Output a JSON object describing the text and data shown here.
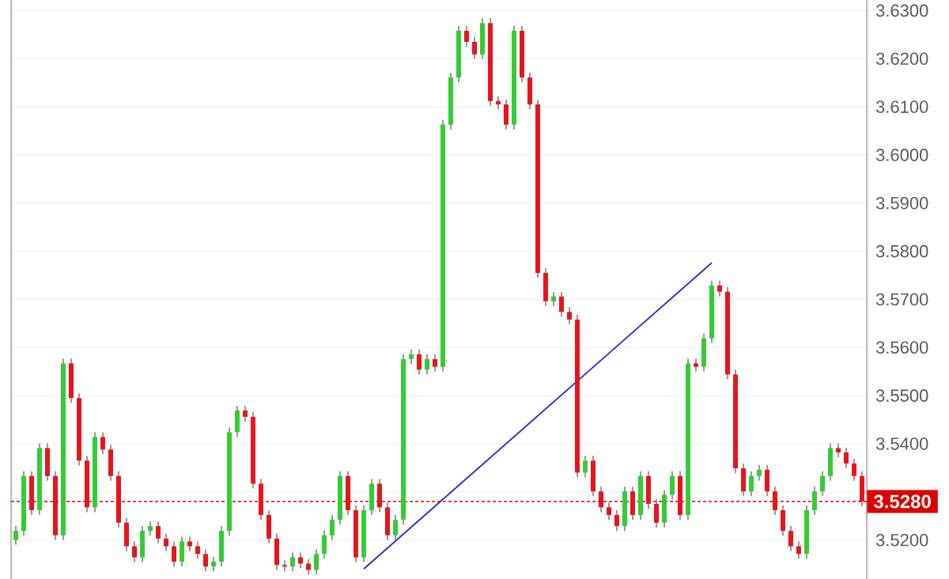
{
  "chart_data": {
    "type": "candlestick",
    "tick_labels": "y",
    "grid": "y",
    "categories": [
      null,
      null,
      null,
      null,
      null,
      null,
      null,
      null,
      null,
      null,
      null,
      null,
      null,
      null,
      null,
      null,
      null,
      null,
      null,
      null,
      null,
      null,
      null,
      null,
      null,
      null,
      null,
      null,
      null,
      null,
      null,
      null,
      null,
      null,
      null,
      null,
      null,
      null,
      null,
      null,
      null,
      null,
      null,
      null,
      null,
      null,
      null,
      null,
      null,
      null,
      null,
      null,
      null,
      null,
      null,
      null,
      null,
      null,
      null,
      null,
      null,
      null,
      null,
      null,
      null,
      null,
      null,
      null,
      null,
      null,
      null,
      null,
      null,
      null,
      null,
      null,
      null,
      null,
      null,
      null,
      null,
      null,
      null,
      null,
      null,
      null,
      null,
      null,
      null,
      null,
      null,
      null,
      null,
      null,
      null,
      null,
      null,
      null,
      null,
      null,
      null,
      null,
      null,
      null,
      null,
      null,
      null,
      null
    ],
    "ohlc": [
      [
        3.52,
        3.5229,
        3.519,
        3.5219
      ],
      [
        3.5219,
        3.5343,
        3.5209,
        3.5333
      ],
      [
        3.5333,
        3.5343,
        3.5252,
        3.5262
      ],
      [
        3.5262,
        3.5401,
        3.5252,
        3.5391
      ],
      [
        3.5391,
        3.5401,
        3.5323,
        3.5333
      ],
      [
        3.5333,
        3.5343,
        3.52,
        3.521
      ],
      [
        3.521,
        3.5577,
        3.52,
        3.5567
      ],
      [
        3.5567,
        3.5577,
        3.5485,
        3.5495
      ],
      [
        3.5495,
        3.5505,
        3.5355,
        3.5365
      ],
      [
        3.5365,
        3.5375,
        3.5258,
        3.5268
      ],
      [
        3.5268,
        3.5424,
        3.5258,
        3.5414
      ],
      [
        3.5414,
        3.5424,
        3.5378,
        3.5388
      ],
      [
        3.5388,
        3.5398,
        3.5323,
        3.5333
      ],
      [
        3.5333,
        3.5343,
        3.5226,
        3.5236
      ],
      [
        3.5236,
        3.5246,
        3.5177,
        3.5187
      ],
      [
        3.5187,
        3.5197,
        3.5154,
        3.5164
      ],
      [
        3.5164,
        3.5229,
        3.5154,
        3.5219
      ],
      [
        3.5219,
        3.5239,
        3.5209,
        3.5229
      ],
      [
        3.5229,
        3.5239,
        3.5193,
        3.5203
      ],
      [
        3.5203,
        3.5213,
        3.5177,
        3.5187
      ],
      [
        3.5187,
        3.5197,
        3.5145,
        3.5155
      ],
      [
        3.5155,
        3.5207,
        3.5145,
        3.5197
      ],
      [
        3.5197,
        3.5207,
        3.5177,
        3.5187
      ],
      [
        3.5187,
        3.5197,
        3.5161,
        3.5171
      ],
      [
        3.5171,
        3.5181,
        3.5135,
        3.5145
      ],
      [
        3.5145,
        3.5165,
        3.5135,
        3.5155
      ],
      [
        3.5155,
        3.5229,
        3.5145,
        3.5219
      ],
      [
        3.5219,
        3.5434,
        3.5209,
        3.5424
      ],
      [
        3.5424,
        3.5479,
        3.5414,
        3.5469
      ],
      [
        3.5469,
        3.5479,
        3.5446,
        3.5456
      ],
      [
        3.5456,
        3.5466,
        3.5307,
        3.5317
      ],
      [
        3.5317,
        3.5327,
        3.5242,
        3.5252
      ],
      [
        3.5252,
        3.5262,
        3.5193,
        3.5203
      ],
      [
        3.5203,
        3.5213,
        3.5138,
        3.5148
      ],
      [
        3.5148,
        3.5158,
        3.5135,
        3.5145
      ],
      [
        3.5145,
        3.5174,
        3.5135,
        3.5164
      ],
      [
        3.5164,
        3.5174,
        3.5141,
        3.5151
      ],
      [
        3.5151,
        3.5161,
        3.5128,
        3.5138
      ],
      [
        3.5138,
        3.5181,
        3.5128,
        3.5171
      ],
      [
        3.5171,
        3.522,
        3.5161,
        3.521
      ],
      [
        3.521,
        3.5252,
        3.52,
        3.5242
      ],
      [
        3.5242,
        3.5343,
        3.5232,
        3.5333
      ],
      [
        3.5333,
        3.5343,
        3.5252,
        3.5262
      ],
      [
        3.5262,
        3.5272,
        3.5154,
        3.5164
      ],
      [
        3.5164,
        3.5272,
        3.5154,
        3.5262
      ],
      [
        3.5262,
        3.5327,
        3.5252,
        3.5317
      ],
      [
        3.5317,
        3.5327,
        3.5258,
        3.5268
      ],
      [
        3.5268,
        3.5278,
        3.52,
        3.521
      ],
      [
        3.521,
        3.5252,
        3.52,
        3.5242
      ],
      [
        3.5242,
        3.5586,
        3.5232,
        3.5576
      ],
      [
        3.5576,
        3.5596,
        3.5566,
        3.5586
      ],
      [
        3.5586,
        3.5596,
        3.5544,
        3.5554
      ],
      [
        3.5554,
        3.5586,
        3.5544,
        3.5576
      ],
      [
        3.5576,
        3.5586,
        3.555,
        3.556
      ],
      [
        3.556,
        3.6073,
        3.555,
        3.6063
      ],
      [
        3.6063,
        3.6171,
        3.6053,
        3.6161
      ],
      [
        3.6161,
        3.6268,
        3.6151,
        3.6258
      ],
      [
        3.6258,
        3.6268,
        3.6225,
        3.6235
      ],
      [
        3.6235,
        3.6245,
        3.6199,
        3.6209
      ],
      [
        3.6209,
        3.6284,
        3.6199,
        3.6274
      ],
      [
        3.6274,
        3.6284,
        3.6102,
        3.6112
      ],
      [
        3.6112,
        3.6122,
        3.6095,
        3.6105
      ],
      [
        3.6105,
        3.6115,
        3.6053,
        3.6063
      ],
      [
        3.6063,
        3.6268,
        3.6053,
        3.6258
      ],
      [
        3.6258,
        3.6268,
        3.6151,
        3.6161
      ],
      [
        3.6161,
        3.6171,
        3.6095,
        3.6105
      ],
      [
        3.6105,
        3.6115,
        3.5745,
        3.5755
      ],
      [
        3.5755,
        3.5765,
        3.5686,
        3.5696
      ],
      [
        3.5696,
        3.5716,
        3.5686,
        3.5706
      ],
      [
        3.5706,
        3.5716,
        3.5664,
        3.5674
      ],
      [
        3.5674,
        3.5684,
        3.5648,
        3.5658
      ],
      [
        3.5658,
        3.5668,
        3.533,
        3.534
      ],
      [
        3.534,
        3.5375,
        3.533,
        3.5365
      ],
      [
        3.5365,
        3.5375,
        3.5291,
        3.5301
      ],
      [
        3.5301,
        3.5311,
        3.5258,
        3.5268
      ],
      [
        3.5268,
        3.5278,
        3.5242,
        3.5252
      ],
      [
        3.5252,
        3.5262,
        3.5219,
        3.5229
      ],
      [
        3.5229,
        3.5311,
        3.5219,
        3.5301
      ],
      [
        3.5301,
        3.5311,
        3.5242,
        3.5252
      ],
      [
        3.5252,
        3.5343,
        3.5242,
        3.5333
      ],
      [
        3.5333,
        3.5343,
        3.5265,
        3.5275
      ],
      [
        3.5275,
        3.5285,
        3.5226,
        3.5236
      ],
      [
        3.5236,
        3.5304,
        3.5226,
        3.5294
      ],
      [
        3.5294,
        3.5343,
        3.5284,
        3.5333
      ],
      [
        3.5333,
        3.5343,
        3.5242,
        3.5252
      ],
      [
        3.5252,
        3.5577,
        3.5242,
        3.5567
      ],
      [
        3.5567,
        3.5577,
        3.555,
        3.556
      ],
      [
        3.556,
        3.5629,
        3.555,
        3.5619
      ],
      [
        3.5619,
        3.5739,
        3.5609,
        3.5729
      ],
      [
        3.5729,
        3.5739,
        3.5706,
        3.5716
      ],
      [
        3.5716,
        3.5726,
        3.5534,
        3.5544
      ],
      [
        3.5544,
        3.5554,
        3.5339,
        3.5349
      ],
      [
        3.5349,
        3.5359,
        3.5291,
        3.5301
      ],
      [
        3.5301,
        3.5343,
        3.5291,
        3.5333
      ],
      [
        3.5333,
        3.5356,
        3.5323,
        3.5346
      ],
      [
        3.5346,
        3.5356,
        3.5291,
        3.5301
      ],
      [
        3.5301,
        3.5311,
        3.5252,
        3.5262
      ],
      [
        3.5262,
        3.5272,
        3.5209,
        3.5219
      ],
      [
        3.5219,
        3.5229,
        3.5177,
        3.5187
      ],
      [
        3.5187,
        3.5197,
        3.5161,
        3.5171
      ],
      [
        3.5171,
        3.5272,
        3.5161,
        3.5262
      ],
      [
        3.5262,
        3.5311,
        3.5252,
        3.5301
      ],
      [
        3.5301,
        3.5343,
        3.5291,
        3.5333
      ],
      [
        3.5333,
        3.5401,
        3.5323,
        3.5391
      ],
      [
        3.5391,
        3.5401,
        3.5372,
        3.5382
      ],
      [
        3.5382,
        3.5392,
        3.5349,
        3.5359
      ],
      [
        3.5359,
        3.5369,
        3.5323,
        3.5333
      ],
      [
        3.5333,
        3.5343,
        3.527,
        3.528
      ]
    ],
    "colors": [
      "#33cc33",
      "#33cc33",
      "#e8141b",
      "#33cc33",
      "#e8141b",
      "#e8141b",
      "#33cc33",
      "#e8141b",
      "#e8141b",
      "#e8141b",
      "#33cc33",
      "#e8141b",
      "#e8141b",
      "#e8141b",
      "#e8141b",
      "#e8141b",
      "#33cc33",
      "#33cc33",
      "#e8141b",
      "#e8141b",
      "#e8141b",
      "#33cc33",
      "#e8141b",
      "#e8141b",
      "#e8141b",
      "#33cc33",
      "#33cc33",
      "#33cc33",
      "#33cc33",
      "#e8141b",
      "#e8141b",
      "#e8141b",
      "#e8141b",
      "#e8141b",
      "#e8141b",
      "#33cc33",
      "#e8141b",
      "#e8141b",
      "#33cc33",
      "#33cc33",
      "#33cc33",
      "#33cc33",
      "#e8141b",
      "#e8141b",
      "#33cc33",
      "#33cc33",
      "#e8141b",
      "#e8141b",
      "#33cc33",
      "#33cc33",
      "#33cc33",
      "#e8141b",
      "#33cc33",
      "#e8141b",
      "#33cc33",
      "#33cc33",
      "#33cc33",
      "#e8141b",
      "#e8141b",
      "#33cc33",
      "#e8141b",
      "#e8141b",
      "#e8141b",
      "#33cc33",
      "#e8141b",
      "#e8141b",
      "#e8141b",
      "#e8141b",
      "#33cc33",
      "#e8141b",
      "#e8141b",
      "#e8141b",
      "#33cc33",
      "#e8141b",
      "#e8141b",
      "#e8141b",
      "#e8141b",
      "#33cc33",
      "#e8141b",
      "#33cc33",
      "#e8141b",
      "#e8141b",
      "#33cc33",
      "#33cc33",
      "#e8141b",
      "#33cc33",
      "#e8141b",
      "#33cc33",
      "#33cc33",
      "#e8141b",
      "#e8141b",
      "#e8141b",
      "#e8141b",
      "#33cc33",
      "#33cc33",
      "#e8141b",
      "#e8141b",
      "#e8141b",
      "#e8141b",
      "#e8141b",
      "#33cc33",
      "#33cc33",
      "#33cc33",
      "#33cc33",
      "#e8141b",
      "#e8141b",
      "#e8141b",
      "#e8141b"
    ],
    "series": [
      {
        "type": "line",
        "color": "#2525d6",
        "values": [
          null,
          null,
          null,
          null,
          null,
          null,
          null,
          null,
          null,
          null,
          null,
          null,
          null,
          null,
          null,
          null,
          null,
          null,
          null,
          null,
          null,
          null,
          null,
          null,
          null,
          null,
          null,
          null,
          null,
          null,
          null,
          null,
          null,
          null,
          null,
          null,
          null,
          null,
          null,
          null,
          null,
          null,
          null,
          null,
          3.514,
          null,
          null,
          null,
          null,
          null,
          null,
          null,
          null,
          null,
          null,
          null,
          null,
          null,
          null,
          null,
          null,
          null,
          null,
          null,
          null,
          null,
          null,
          null,
          null,
          null,
          null,
          null,
          null,
          null,
          null,
          null,
          null,
          null,
          null,
          null,
          null,
          null,
          null,
          null,
          null,
          null,
          null,
          null,
          3.5776,
          null,
          null,
          null,
          null,
          null,
          null,
          null,
          null,
          null,
          null,
          null,
          null,
          null,
          null,
          null,
          null,
          null,
          null,
          null
        ]
      }
    ],
    "ylim": [
      3.5119,
      3.6322
    ],
    "yticks": [
      {
        "value": 3.52,
        "label": "3.5200"
      },
      {
        "value": 3.53,
        "label": null
      },
      {
        "value": 3.54,
        "label": "3.5400"
      },
      {
        "value": 3.55,
        "label": "3.5500"
      },
      {
        "value": 3.56,
        "label": "3.5600"
      },
      {
        "value": 3.57,
        "label": "3.5700"
      },
      {
        "value": 3.58,
        "label": "3.5800"
      },
      {
        "value": 3.59,
        "label": "3.5900"
      },
      {
        "value": 3.6,
        "label": "3.6000"
      },
      {
        "value": 3.61,
        "label": "3.6100"
      },
      {
        "value": 3.62,
        "label": "3.6200"
      },
      {
        "value": 3.63,
        "label": "3.6300"
      }
    ],
    "ref_lines": [
      {
        "axis": "y",
        "value": 3.528,
        "label": "3.5280",
        "color": "#dd0000",
        "line_style": "dotted"
      }
    ]
  }
}
